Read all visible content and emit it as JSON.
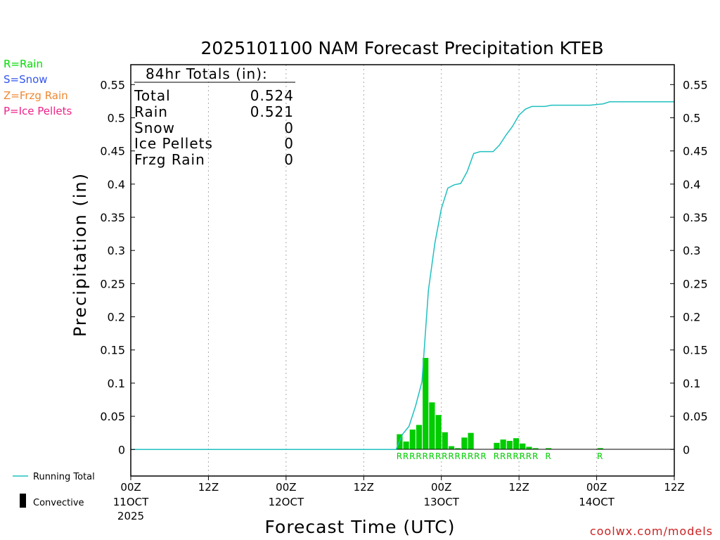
{
  "chart_data": {
    "type": "bar",
    "title": "2025101100 NAM Forecast Precipitation KTEB",
    "xlabel": "Forecast Time (UTC)",
    "ylabel": "Precipitation (in)",
    "ylim": [
      -0.04,
      0.58
    ],
    "y_ticks": [
      "0",
      "0.05",
      "0.1",
      "0.15",
      "0.2",
      "0.25",
      "0.3",
      "0.35",
      "0.4",
      "0.45",
      "0.5",
      "0.55"
    ],
    "y_tick_values": [
      0,
      0.05,
      0.1,
      0.15,
      0.2,
      0.25,
      0.3,
      0.35,
      0.4,
      0.45,
      0.5,
      0.55
    ],
    "x_range_hours": [
      0,
      84
    ],
    "x_ticks": [
      {
        "hour": 0,
        "time": "00Z",
        "date": "11OCT",
        "year": "2025"
      },
      {
        "hour": 12,
        "time": "12Z",
        "date": "",
        "year": ""
      },
      {
        "hour": 24,
        "time": "00Z",
        "date": "12OCT",
        "year": ""
      },
      {
        "hour": 36,
        "time": "12Z",
        "date": "",
        "year": ""
      },
      {
        "hour": 48,
        "time": "00Z",
        "date": "13OCT",
        "year": ""
      },
      {
        "hour": 60,
        "time": "12Z",
        "date": "",
        "year": ""
      },
      {
        "hour": 72,
        "time": "00Z",
        "date": "14OCT",
        "year": ""
      },
      {
        "hour": 84,
        "time": "12Z",
        "date": "",
        "year": ""
      }
    ],
    "grid_hours": [
      12,
      24,
      36,
      48,
      60,
      72
    ],
    "bars": {
      "name": "Hourly Precipitation (Rain)",
      "color": "#00cc00",
      "hours": [
        42,
        43,
        44,
        45,
        46,
        47,
        48,
        49,
        50,
        51,
        52,
        53,
        57,
        58,
        59,
        60,
        61,
        62,
        63,
        65,
        73
      ],
      "values": [
        0.023,
        0.012,
        0.03,
        0.037,
        0.138,
        0.071,
        0.052,
        0.026,
        0.005,
        0.002,
        0.018,
        0.025,
        0.01,
        0.015,
        0.013,
        0.017,
        0.009,
        0.004,
        0.002,
        0.002,
        0.002
      ]
    },
    "running_total": {
      "name": "Running Total",
      "color": "#20c0c0",
      "hours": [
        0,
        41,
        42,
        43,
        44,
        45,
        46,
        47,
        48,
        49,
        50,
        51,
        52,
        53,
        54,
        55,
        56,
        57,
        58,
        59,
        60,
        61,
        62,
        63,
        64,
        65,
        66,
        67,
        68,
        69,
        70,
        71,
        72,
        73,
        74,
        84
      ],
      "values": [
        0,
        0,
        0.023,
        0.035,
        0.065,
        0.102,
        0.24,
        0.311,
        0.363,
        0.394,
        0.399,
        0.401,
        0.419,
        0.446,
        0.449,
        0.449,
        0.449,
        0.459,
        0.474,
        0.487,
        0.504,
        0.513,
        0.517,
        0.517,
        0.517,
        0.519,
        0.519,
        0.519,
        0.519,
        0.519,
        0.519,
        0.519,
        0.52,
        0.521,
        0.524,
        0.524
      ]
    },
    "type_markers": [
      {
        "text": "RRRRRRRRRRRRRR",
        "start_hour": 42,
        "end_hour": 55
      },
      {
        "text": "RRRRRRR",
        "start_hour": 57,
        "end_hour": 63
      },
      {
        "text": "R",
        "start_hour": 65,
        "end_hour": 65
      },
      {
        "text": "R",
        "start_hour": 73,
        "end_hour": 73
      }
    ],
    "totals_box": {
      "heading": "84hr Totals (in):",
      "rows": [
        {
          "label": "Total",
          "value": "0.524"
        },
        {
          "label": "Rain",
          "value": "0.521"
        },
        {
          "label": "Snow",
          "value": "0"
        },
        {
          "label": "Ice Pellets",
          "value": "0"
        },
        {
          "label": "Frzg Rain",
          "value": "0"
        }
      ]
    }
  },
  "type_legend": [
    {
      "text": "R=Rain",
      "color": "#00dd00"
    },
    {
      "text": "S=Snow",
      "color": "#3355ee"
    },
    {
      "text": "Z=Frzg Rain",
      "color": "#ee8833"
    },
    {
      "text": "P=Ice Pellets",
      "color": "#ee2288"
    }
  ],
  "series_legend": {
    "running_total": "Running Total",
    "convective": "Convective"
  },
  "credit": "coolwx.com/models",
  "colors": {
    "rain": "#00cc00",
    "running_total": "#20c0c0",
    "credit": "#cc2222",
    "axis": "#000000"
  }
}
